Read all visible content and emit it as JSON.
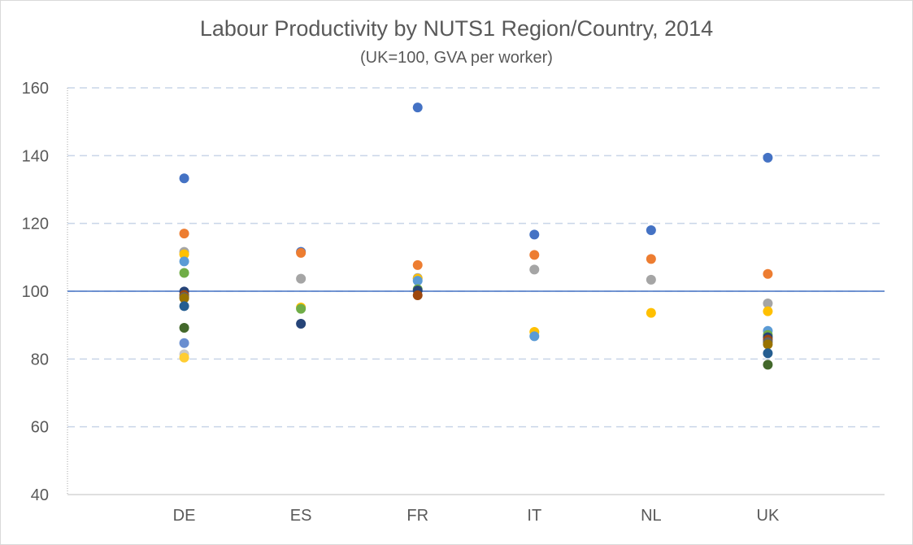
{
  "chart_data": {
    "type": "scatter",
    "title": "Labour Productivity by NUTS1 Region/Country, 2014",
    "subtitle": "(UK=100, GVA per worker)",
    "xlabel": "",
    "ylabel": "",
    "ylim": [
      40,
      160
    ],
    "yticks": [
      40,
      60,
      80,
      100,
      120,
      140,
      160
    ],
    "categories": [
      "DE",
      "ES",
      "FR",
      "IT",
      "NL",
      "UK"
    ],
    "reference_line": 100,
    "grid": true,
    "gridline_style": "dashed",
    "reference_line_color": "#4472c4",
    "points": [
      {
        "x": "DE",
        "y": 133.3,
        "color": "#4472c4"
      },
      {
        "x": "DE",
        "y": 117.0,
        "color": "#ed7d31"
      },
      {
        "x": "DE",
        "y": 111.6,
        "color": "#a5a5a5"
      },
      {
        "x": "DE",
        "y": 110.9,
        "color": "#ffc000"
      },
      {
        "x": "DE",
        "y": 108.8,
        "color": "#5b9bd5"
      },
      {
        "x": "DE",
        "y": 105.4,
        "color": "#70ad47"
      },
      {
        "x": "DE",
        "y": 99.9,
        "color": "#264478"
      },
      {
        "x": "DE",
        "y": 98.9,
        "color": "#9e480e"
      },
      {
        "x": "DE",
        "y": 98.3,
        "color": "#636363"
      },
      {
        "x": "DE",
        "y": 97.9,
        "color": "#997300"
      },
      {
        "x": "DE",
        "y": 95.6,
        "color": "#255e91"
      },
      {
        "x": "DE",
        "y": 89.2,
        "color": "#43682b"
      },
      {
        "x": "DE",
        "y": 84.7,
        "color": "#698ed0"
      },
      {
        "x": "DE",
        "y": 81.4,
        "color": "#c9c9c9"
      },
      {
        "x": "DE",
        "y": 80.4,
        "color": "#ffcd33"
      },
      {
        "x": "ES",
        "y": 111.6,
        "color": "#4472c4"
      },
      {
        "x": "ES",
        "y": 111.3,
        "color": "#ed7d31"
      },
      {
        "x": "ES",
        "y": 103.7,
        "color": "#a5a5a5"
      },
      {
        "x": "ES",
        "y": 95.2,
        "color": "#ffc000"
      },
      {
        "x": "ES",
        "y": 94.8,
        "color": "#70ad47"
      },
      {
        "x": "ES",
        "y": 90.4,
        "color": "#264478"
      },
      {
        "x": "FR",
        "y": 154.2,
        "color": "#4472c4"
      },
      {
        "x": "FR",
        "y": 107.7,
        "color": "#ed7d31"
      },
      {
        "x": "FR",
        "y": 103.9,
        "color": "#a5a5a5"
      },
      {
        "x": "FR",
        "y": 103.7,
        "color": "#ffc000"
      },
      {
        "x": "FR",
        "y": 103.1,
        "color": "#5b9bd5"
      },
      {
        "x": "FR",
        "y": 100.6,
        "color": "#70ad47"
      },
      {
        "x": "FR",
        "y": 100.2,
        "color": "#264478"
      },
      {
        "x": "FR",
        "y": 98.8,
        "color": "#9e480e"
      },
      {
        "x": "IT",
        "y": 116.7,
        "color": "#4472c4"
      },
      {
        "x": "IT",
        "y": 110.7,
        "color": "#ed7d31"
      },
      {
        "x": "IT",
        "y": 106.4,
        "color": "#a5a5a5"
      },
      {
        "x": "IT",
        "y": 88.0,
        "color": "#ffc000"
      },
      {
        "x": "IT",
        "y": 86.7,
        "color": "#5b9bd5"
      },
      {
        "x": "NL",
        "y": 118.0,
        "color": "#4472c4"
      },
      {
        "x": "NL",
        "y": 109.5,
        "color": "#ed7d31"
      },
      {
        "x": "NL",
        "y": 103.4,
        "color": "#a5a5a5"
      },
      {
        "x": "NL",
        "y": 93.6,
        "color": "#ffc000"
      },
      {
        "x": "UK",
        "y": 139.4,
        "color": "#4472c4"
      },
      {
        "x": "UK",
        "y": 105.1,
        "color": "#ed7d31"
      },
      {
        "x": "UK",
        "y": 96.4,
        "color": "#a5a5a5"
      },
      {
        "x": "UK",
        "y": 94.1,
        "color": "#ffc000"
      },
      {
        "x": "UK",
        "y": 88.3,
        "color": "#5b9bd5"
      },
      {
        "x": "UK",
        "y": 87.1,
        "color": "#70ad47"
      },
      {
        "x": "UK",
        "y": 86.4,
        "color": "#264478"
      },
      {
        "x": "UK",
        "y": 85.7,
        "color": "#9e480e"
      },
      {
        "x": "UK",
        "y": 85.0,
        "color": "#636363"
      },
      {
        "x": "UK",
        "y": 84.3,
        "color": "#997300"
      },
      {
        "x": "UK",
        "y": 81.7,
        "color": "#255e91"
      },
      {
        "x": "UK",
        "y": 78.3,
        "color": "#43682b"
      }
    ]
  }
}
